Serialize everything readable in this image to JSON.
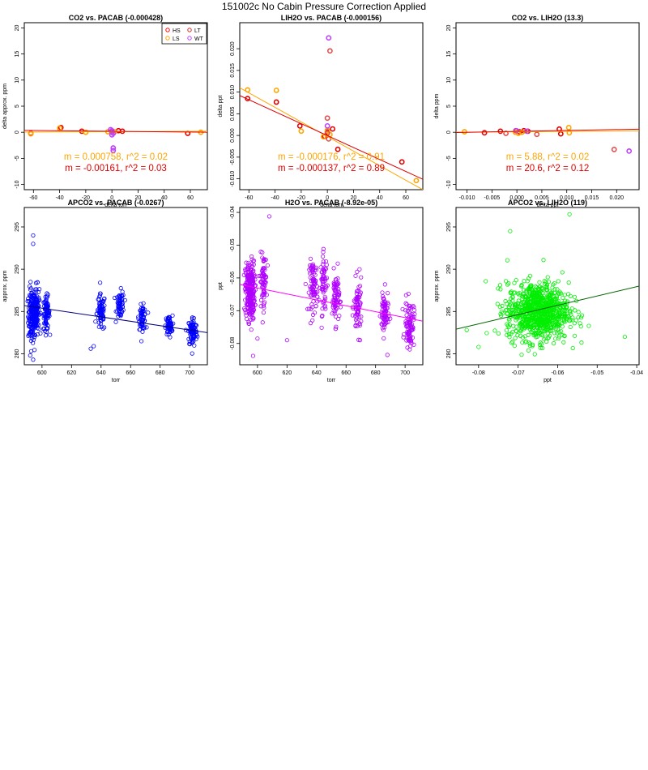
{
  "figure": {
    "title": "151002c   No Cabin Pressure Correction Applied"
  },
  "chart_data": [
    {
      "type": "scatter",
      "title": "CO2 vs. PACAB (-0.000428)",
      "xlabel": "delta torr",
      "ylabel": "delta approx. ppm",
      "xlim": [
        -67,
        73
      ],
      "ylim": [
        -11,
        21
      ],
      "xticks": [
        -60,
        -40,
        -20,
        0,
        20,
        40,
        60
      ],
      "xtick_labels": [
        "-60",
        "-40",
        "-20",
        "0",
        "20",
        "40",
        "60"
      ],
      "yticks": [
        -10,
        -5,
        0,
        5,
        10,
        15,
        20
      ],
      "ytick_labels": [
        "-10",
        "-5",
        "0",
        "5",
        "10",
        "15",
        "20"
      ],
      "grid": false,
      "legend": {
        "placement": "top-right",
        "entries": [
          {
            "label": "HS",
            "color": "#ff0000"
          },
          {
            "label": "LT",
            "color": "#d62728"
          },
          {
            "label": "LS",
            "color": "#ffa500"
          },
          {
            "label": "WT",
            "color": "#c040ff"
          }
        ]
      },
      "series": [
        {
          "name": "HS",
          "color": "#e00000",
          "points": [
            [
              -62,
              -0.2
            ],
            [
              -39,
              0.9
            ],
            [
              -23,
              0.2
            ],
            [
              5,
              0.3
            ],
            [
              8,
              0.2
            ],
            [
              58,
              -0.2
            ]
          ]
        },
        {
          "name": "LS",
          "color": "#ffa500",
          "points": [
            [
              -62,
              -0.3
            ],
            [
              -40,
              0.8
            ],
            [
              -20,
              0.0
            ],
            [
              -3,
              0.1
            ],
            [
              0,
              0.0
            ],
            [
              2,
              0.1
            ],
            [
              68,
              0.0
            ]
          ]
        },
        {
          "name": "WT",
          "color": "#c040ff",
          "points": [
            [
              -1,
              0.5
            ],
            [
              0,
              -0.5
            ],
            [
              0,
              0.1
            ],
            [
              1,
              -3.5
            ],
            [
              1,
              -3.0
            ],
            [
              1,
              -0.2
            ],
            [
              0,
              0.3
            ]
          ]
        }
      ],
      "fit_lines": [
        {
          "color": "#ffa500",
          "x": [
            -67,
            73
          ],
          "y": [
            0.05,
            0.2
          ]
        },
        {
          "color": "#e00000",
          "x": [
            -67,
            73
          ],
          "y": [
            0.35,
            0.0
          ]
        }
      ],
      "annotations": [
        {
          "text": "m = 0.000758, r^2 = 0.02",
          "color": "#ffa500"
        },
        {
          "text": "m = -0.00161, r^2 = 0.03",
          "color": "#e00000"
        }
      ]
    },
    {
      "type": "scatter",
      "title": "LIH2O vs. PACAB (-0.000156)",
      "xlabel": "delta torr",
      "ylabel": "delta ppt",
      "xlim": [
        -67,
        73
      ],
      "ylim": [
        -0.0125,
        0.026
      ],
      "xticks": [
        -60,
        -40,
        -20,
        0,
        20,
        40,
        60
      ],
      "xtick_labels": [
        "-60",
        "-40",
        "-20",
        "0",
        "20",
        "40",
        "60"
      ],
      "yticks": [
        -0.01,
        -0.005,
        0,
        0.005,
        0.01,
        0.015,
        0.02
      ],
      "ytick_labels": [
        "-0.010",
        "-0.005",
        "0.000",
        "0.005",
        "0.010",
        "0.015",
        "0.020"
      ],
      "grid": false,
      "series": [
        {
          "name": "HS",
          "color": "#e00000",
          "points": [
            [
              -61,
              0.0085
            ],
            [
              -39,
              0.0077
            ],
            [
              -21,
              0.0022
            ],
            [
              -2,
              -0.0002
            ],
            [
              0,
              0.0008
            ],
            [
              4,
              0.0015
            ],
            [
              8,
              -0.0032
            ],
            [
              57,
              -0.0061
            ]
          ]
        },
        {
          "name": "LS",
          "color": "#ffa500",
          "points": [
            [
              -61,
              0.0105
            ],
            [
              -39,
              0.0104
            ],
            [
              -20,
              0.001
            ],
            [
              -3,
              -0.0003
            ],
            [
              0,
              0.0012
            ],
            [
              2,
              0.0002
            ],
            [
              68,
              -0.0104
            ]
          ]
        },
        {
          "name": "WT",
          "color": "#c040ff",
          "points": [
            [
              0,
              0.0022
            ],
            [
              1,
              0.0225
            ]
          ]
        },
        {
          "name": "LT",
          "color": "#e05050",
          "points": [
            [
              0,
              0.004
            ],
            [
              0,
              0.0005
            ],
            [
              1,
              -0.0008
            ],
            [
              2,
              0.0195
            ]
          ]
        }
      ],
      "fit_lines": [
        {
          "color": "#ffa500",
          "x": [
            -67,
            73
          ],
          "y": [
            0.011,
            -0.0125
          ]
        },
        {
          "color": "#e00000",
          "x": [
            -67,
            73
          ],
          "y": [
            0.0092,
            -0.0101
          ]
        }
      ],
      "annotations": [
        {
          "text": "m = -0.000176, r^2 = 0.91",
          "color": "#ffa500"
        },
        {
          "text": "m = -0.000137, r^2 = 0.89",
          "color": "#e00000"
        }
      ]
    },
    {
      "type": "scatter",
      "title": "CO2 vs. LIH2O (13.3)",
      "xlabel": "delta ppt",
      "ylabel": "delta ppm",
      "xlim": [
        -0.0122,
        0.0245
      ],
      "ylim": [
        -11,
        21
      ],
      "xticks": [
        -0.01,
        -0.005,
        0,
        0.005,
        0.01,
        0.015,
        0.02
      ],
      "xtick_labels": [
        "-0.010",
        "-0.005",
        "0.000",
        "0.005",
        "0.010",
        "0.015",
        "0.020"
      ],
      "yticks": [
        -10,
        -5,
        0,
        5,
        10,
        15,
        20
      ],
      "ytick_labels": [
        "-10",
        "-5",
        "0",
        "5",
        "10",
        "15",
        "20"
      ],
      "grid": false,
      "series": [
        {
          "name": "HS",
          "color": "#e00000",
          "points": [
            [
              -0.0065,
              -0.1
            ],
            [
              -0.0033,
              0.2
            ],
            [
              -0.0002,
              0.3
            ],
            [
              0.0005,
              0.1
            ],
            [
              0.0014,
              0.3
            ],
            [
              0.0022,
              0.2
            ],
            [
              0.0085,
              0.6
            ],
            [
              0.0088,
              -0.3
            ]
          ]
        },
        {
          "name": "LS",
          "color": "#ffa500",
          "points": [
            [
              -0.0105,
              0.1
            ],
            [
              -0.0003,
              0.0
            ],
            [
              0.001,
              0.0
            ],
            [
              0.0003,
              -0.2
            ],
            [
              0.0104,
              0.9
            ],
            [
              0.0105,
              -0.1
            ]
          ]
        },
        {
          "name": "WT",
          "color": "#c040ff",
          "points": [
            [
              -0.0001,
              0.3
            ],
            [
              0.002,
              0.2
            ],
            [
              0.0225,
              -3.6
            ]
          ]
        },
        {
          "name": "LT",
          "color": "#e05050",
          "points": [
            [
              -0.0022,
              -0.2
            ],
            [
              0.004,
              -0.4
            ],
            [
              0.0195,
              -3.3
            ]
          ]
        }
      ],
      "fit_lines": [
        {
          "color": "#ffa500",
          "x": [
            -0.0122,
            0.0245
          ],
          "y": [
            0.0,
            0.25
          ]
        },
        {
          "color": "#e00000",
          "x": [
            -0.0122,
            0.0245
          ],
          "y": [
            -0.05,
            0.6
          ]
        }
      ],
      "annotations": [
        {
          "text": "m = 5.88, r^2 = 0.02",
          "color": "#ffa500"
        },
        {
          "text": "m = 20.6, r^2 = 0.12",
          "color": "#e00000"
        }
      ]
    },
    {
      "type": "scatter",
      "title": "APCO2 vs. PACAB (-0.0267)",
      "xlabel": "torr",
      "ylabel": "approx. ppm",
      "xlim": [
        588,
        712
      ],
      "ylim": [
        278.7,
        297.3
      ],
      "xticks": [
        600,
        620,
        640,
        660,
        680,
        700
      ],
      "xtick_labels": [
        "600",
        "620",
        "640",
        "660",
        "680",
        "700"
      ],
      "yticks": [
        280,
        285,
        290,
        295
      ],
      "ytick_labels": [
        "280",
        "285",
        "290",
        "295"
      ],
      "grid": false,
      "clusters": [
        {
          "x": 593,
          "xspread": 2.0,
          "y": 284.5,
          "yspread": 1.6,
          "n": 140
        },
        {
          "x": 596,
          "xspread": 1.8,
          "y": 285.2,
          "yspread": 1.4,
          "n": 130
        },
        {
          "x": 603,
          "xspread": 1.8,
          "y": 284.8,
          "yspread": 1.0,
          "n": 80
        },
        {
          "x": 640,
          "xspread": 2.4,
          "y": 284.8,
          "yspread": 1.1,
          "n": 70
        },
        {
          "x": 653,
          "xspread": 2.2,
          "y": 285.8,
          "yspread": 0.8,
          "n": 60
        },
        {
          "x": 668,
          "xspread": 2.0,
          "y": 284.3,
          "yspread": 0.7,
          "n": 60
        },
        {
          "x": 686,
          "xspread": 2.0,
          "y": 283.3,
          "yspread": 0.6,
          "n": 60
        },
        {
          "x": 702,
          "xspread": 2.6,
          "y": 282.6,
          "yspread": 0.9,
          "n": 90
        }
      ],
      "series": [
        {
          "name": "APCO2",
          "color": "#0000ff",
          "points": [
            [
              594,
              294.0
            ],
            [
              594,
              293.0
            ],
            [
              592,
              279.8
            ],
            [
              594,
              279.3
            ],
            [
              633,
              280.6
            ],
            [
              635,
              280.9
            ]
          ]
        }
      ],
      "fit_lines": [
        {
          "color": "#000080",
          "x": [
            588,
            712
          ],
          "y": [
            285.7,
            282.5
          ]
        }
      ]
    },
    {
      "type": "scatter",
      "title": "H2O vs. PACAB (-8.92e-05)",
      "xlabel": "torr",
      "ylabel": "ppt",
      "xlim": [
        588,
        712
      ],
      "ylim": [
        -0.0865,
        -0.0385
      ],
      "xticks": [
        600,
        620,
        640,
        660,
        680,
        700
      ],
      "xtick_labels": [
        "600",
        "620",
        "640",
        "660",
        "680",
        "700"
      ],
      "yticks": [
        -0.08,
        -0.07,
        -0.06,
        -0.05,
        -0.04
      ],
      "ytick_labels": [
        "-0.08",
        "-0.07",
        "-0.06",
        "-0.05",
        "-0.04"
      ],
      "grid": false,
      "clusters": [
        {
          "x": 595,
          "xspread": 2.6,
          "y": -0.064,
          "yspread": 0.0045,
          "n": 260
        },
        {
          "x": 604,
          "xspread": 1.8,
          "y": -0.061,
          "yspread": 0.004,
          "n": 70
        },
        {
          "x": 638,
          "xspread": 2.4,
          "y": -0.0625,
          "yspread": 0.004,
          "n": 80
        },
        {
          "x": 645,
          "xspread": 2.0,
          "y": -0.062,
          "yspread": 0.0045,
          "n": 60
        },
        {
          "x": 653,
          "xspread": 2.0,
          "y": -0.066,
          "yspread": 0.004,
          "n": 70
        },
        {
          "x": 668,
          "xspread": 2.2,
          "y": -0.069,
          "yspread": 0.004,
          "n": 70
        },
        {
          "x": 686,
          "xspread": 2.2,
          "y": -0.071,
          "yspread": 0.0035,
          "n": 70
        },
        {
          "x": 703,
          "xspread": 2.6,
          "y": -0.074,
          "yspread": 0.0035,
          "n": 90
        }
      ],
      "series": [
        {
          "name": "H2O",
          "color": "#b000ff",
          "points": [
            [
              608,
              -0.0412
            ],
            [
              597,
              -0.0838
            ],
            [
              600,
              -0.0785
            ],
            [
              620,
              -0.079
            ],
            [
              688,
              -0.0835
            ]
          ]
        }
      ],
      "fit_lines": [
        {
          "color": "#ff00ff",
          "x": [
            588,
            712
          ],
          "y": [
            -0.062,
            -0.0732
          ]
        }
      ]
    },
    {
      "type": "scatter",
      "title": "APCO2 vs. LIH2O (119)",
      "xlabel": "ppt",
      "ylabel": "approx. ppm",
      "xlim": [
        -0.0857,
        -0.0394
      ],
      "ylim": [
        278.7,
        297.3
      ],
      "xticks": [
        -0.08,
        -0.07,
        -0.06,
        -0.05,
        -0.04
      ],
      "xtick_labels": [
        "-0.08",
        "-0.07",
        "-0.06",
        "-0.05",
        "-0.04"
      ],
      "yticks": [
        280,
        285,
        290,
        295
      ],
      "ytick_labels": [
        "280",
        "285",
        "290",
        "295"
      ],
      "grid": false,
      "clusters": [
        {
          "x": -0.065,
          "xspread": 0.0065,
          "y": 285.0,
          "yspread": 1.7,
          "n": 900
        }
      ],
      "series": [
        {
          "name": "APCO2",
          "color": "#00ee00",
          "points": [
            [
              -0.057,
              296.5
            ],
            [
              -0.072,
              294.5
            ],
            [
              -0.043,
              282.0
            ],
            [
              -0.083,
              282.8
            ],
            [
              -0.08,
              280.8
            ]
          ]
        }
      ],
      "fit_lines": [
        {
          "color": "#006400",
          "x": [
            -0.0857,
            -0.0394
          ],
          "y": [
            282.9,
            288.0
          ]
        }
      ]
    }
  ]
}
